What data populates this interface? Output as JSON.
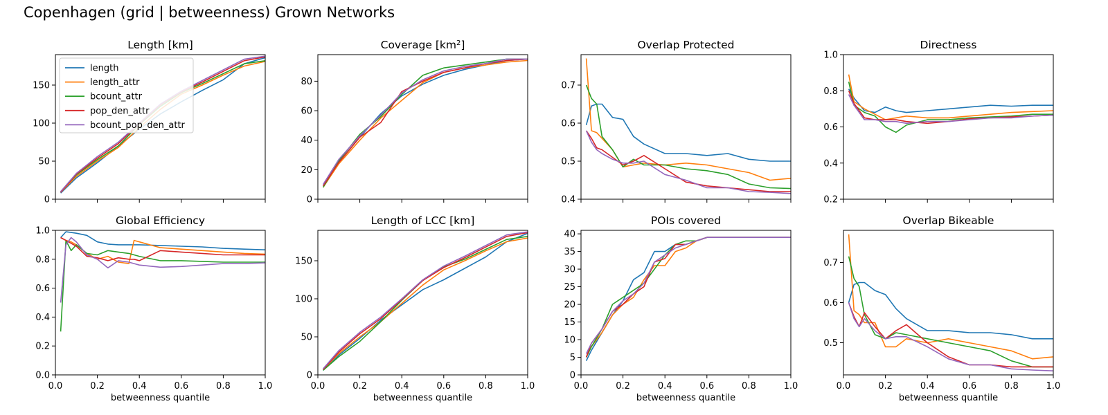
{
  "title": "Copenhagen (grid | betweenness) Grown Networks",
  "colors": {
    "length": "#1f77b4",
    "length_attr": "#ff7f0e",
    "bcount_attr": "#2ca02c",
    "pop_den_attr": "#d62728",
    "bcount_pop_den_attr": "#9467bd"
  },
  "legend": [
    "length",
    "length_attr",
    "bcount_attr",
    "pop_den_attr",
    "bcount_pop_den_attr"
  ],
  "chart_data": [
    {
      "type": "line",
      "title": "Length [km]",
      "xlim": [
        0,
        1
      ],
      "ylim": [
        0,
        190
      ],
      "yticks": [
        0,
        50,
        100,
        150
      ],
      "ytick_labels": [
        "0",
        "50",
        "100",
        "150"
      ],
      "xticks": [],
      "xtick_labels": [],
      "xlabel": "",
      "legend_location": "top-left",
      "x": [
        0.025,
        0.1,
        0.2,
        0.3,
        0.4,
        0.5,
        0.6,
        0.7,
        0.8,
        0.9,
        1.0
      ],
      "series": [
        {
          "name": "length",
          "values": [
            8,
            28,
            48,
            70,
            92,
            112,
            128,
            143,
            157,
            178,
            186
          ]
        },
        {
          "name": "length_attr",
          "values": [
            9,
            30,
            50,
            68,
            94,
            118,
            138,
            150,
            163,
            175,
            181
          ]
        },
        {
          "name": "bcount_attr",
          "values": [
            10,
            32,
            52,
            70,
            98,
            122,
            140,
            152,
            165,
            178,
            182
          ]
        },
        {
          "name": "pop_den_attr",
          "values": [
            9,
            33,
            54,
            73,
            99,
            124,
            141,
            154,
            168,
            182,
            187
          ]
        },
        {
          "name": "bcount_pop_den_attr",
          "values": [
            10,
            34,
            56,
            75,
            100,
            125,
            142,
            156,
            170,
            184,
            188
          ]
        }
      ]
    },
    {
      "type": "line",
      "title": "Coverage [km²]",
      "xlim": [
        0,
        1
      ],
      "ylim": [
        0,
        98
      ],
      "yticks": [
        0,
        20,
        40,
        60,
        80
      ],
      "ytick_labels": [
        "0",
        "20",
        "40",
        "60",
        "80"
      ],
      "xticks": [],
      "xtick_labels": [],
      "xlabel": "",
      "x": [
        0.025,
        0.1,
        0.2,
        0.3,
        0.4,
        0.5,
        0.6,
        0.7,
        0.8,
        0.9,
        1.0
      ],
      "series": [
        {
          "name": "length",
          "values": [
            9,
            25,
            42,
            58,
            70,
            78,
            84,
            88,
            91,
            94,
            95
          ]
        },
        {
          "name": "length_attr",
          "values": [
            8,
            24,
            40,
            55,
            67,
            79,
            86,
            89,
            91,
            93,
            94
          ]
        },
        {
          "name": "bcount_attr",
          "values": [
            8,
            26,
            44,
            56,
            71,
            84,
            89,
            91,
            93,
            95,
            95
          ]
        },
        {
          "name": "pop_den_attr",
          "values": [
            9,
            25,
            42,
            52,
            73,
            80,
            86,
            89,
            92,
            94,
            95
          ]
        },
        {
          "name": "bcount_pop_den_attr",
          "values": [
            10,
            27,
            43,
            57,
            72,
            81,
            87,
            90,
            92,
            95,
            95
          ]
        }
      ]
    },
    {
      "type": "line",
      "title": "Overlap Protected",
      "xlim": [
        0,
        1
      ],
      "ylim": [
        0.4,
        0.78
      ],
      "yticks": [
        0.4,
        0.5,
        0.6,
        0.7
      ],
      "ytick_labels": [
        "0.4",
        "0.5",
        "0.6",
        "0.7"
      ],
      "xticks": [],
      "xtick_labels": [],
      "xlabel": "",
      "x": [
        0.025,
        0.05,
        0.075,
        0.1,
        0.15,
        0.2,
        0.25,
        0.3,
        0.4,
        0.5,
        0.6,
        0.7,
        0.8,
        0.9,
        1.0
      ],
      "series": [
        {
          "name": "length",
          "values": [
            0.595,
            0.645,
            0.65,
            0.65,
            0.615,
            0.61,
            0.565,
            0.545,
            0.52,
            0.52,
            0.515,
            0.52,
            0.505,
            0.5,
            0.5
          ]
        },
        {
          "name": "length_attr",
          "values": [
            0.77,
            0.58,
            0.575,
            0.56,
            0.53,
            0.485,
            0.49,
            0.495,
            0.49,
            0.495,
            0.49,
            0.48,
            0.47,
            0.45,
            0.455
          ]
        },
        {
          "name": "bcount_attr",
          "values": [
            0.7,
            0.665,
            0.65,
            0.565,
            0.53,
            0.485,
            0.505,
            0.49,
            0.49,
            0.48,
            0.475,
            0.465,
            0.44,
            0.43,
            0.428
          ]
        },
        {
          "name": "pop_den_attr",
          "values": [
            0.58,
            0.56,
            0.535,
            0.53,
            0.51,
            0.49,
            0.5,
            0.515,
            0.48,
            0.445,
            0.435,
            0.43,
            0.425,
            0.42,
            0.42
          ]
        },
        {
          "name": "bcount_pop_den_attr",
          "values": [
            0.58,
            0.55,
            0.53,
            0.52,
            0.505,
            0.495,
            0.495,
            0.5,
            0.465,
            0.45,
            0.43,
            0.43,
            0.42,
            0.418,
            0.415
          ]
        }
      ]
    },
    {
      "type": "line",
      "title": "Directness",
      "xlim": [
        0,
        1
      ],
      "ylim": [
        0.2,
        1.0
      ],
      "yticks": [
        0.2,
        0.4,
        0.6,
        0.8,
        1.0
      ],
      "ytick_labels": [
        "0.2",
        "0.4",
        "0.6",
        "0.8",
        "1.0"
      ],
      "xticks": [],
      "xtick_labels": [],
      "xlabel": "",
      "x": [
        0.025,
        0.05,
        0.1,
        0.15,
        0.2,
        0.25,
        0.3,
        0.4,
        0.5,
        0.6,
        0.7,
        0.8,
        0.9,
        1.0
      ],
      "series": [
        {
          "name": "length",
          "values": [
            0.81,
            0.76,
            0.69,
            0.68,
            0.71,
            0.69,
            0.68,
            0.69,
            0.7,
            0.71,
            0.72,
            0.715,
            0.72,
            0.72
          ]
        },
        {
          "name": "length_attr",
          "values": [
            0.89,
            0.74,
            0.7,
            0.67,
            0.64,
            0.65,
            0.66,
            0.65,
            0.65,
            0.66,
            0.67,
            0.68,
            0.685,
            0.69
          ]
        },
        {
          "name": "bcount_attr",
          "values": [
            0.85,
            0.72,
            0.68,
            0.66,
            0.6,
            0.57,
            0.61,
            0.64,
            0.64,
            0.65,
            0.655,
            0.66,
            0.67,
            0.67
          ]
        },
        {
          "name": "pop_den_attr",
          "values": [
            0.8,
            0.73,
            0.65,
            0.64,
            0.64,
            0.64,
            0.63,
            0.62,
            0.63,
            0.645,
            0.65,
            0.655,
            0.66,
            0.665
          ]
        },
        {
          "name": "bcount_pop_den_attr",
          "values": [
            0.78,
            0.72,
            0.64,
            0.64,
            0.63,
            0.63,
            0.62,
            0.63,
            0.63,
            0.64,
            0.65,
            0.65,
            0.66,
            0.665
          ]
        }
      ]
    },
    {
      "type": "line",
      "title": "Global Efficiency",
      "xlim": [
        0,
        1
      ],
      "ylim": [
        0.0,
        1.0
      ],
      "yticks": [
        0.0,
        0.2,
        0.4,
        0.6,
        0.8,
        1.0
      ],
      "ytick_labels": [
        "0.0",
        "0.2",
        "0.4",
        "0.6",
        "0.8",
        "1.0"
      ],
      "xticks": [
        0.0,
        0.2,
        0.4,
        0.6,
        0.8,
        1.0
      ],
      "xtick_labels": [
        "0.0",
        "0.2",
        "0.4",
        "0.6",
        "0.8",
        "1.0"
      ],
      "xlabel": "betweenness quantile",
      "x": [
        0.025,
        0.05,
        0.075,
        0.1,
        0.15,
        0.2,
        0.25,
        0.3,
        0.35,
        0.375,
        0.4,
        0.5,
        0.6,
        0.7,
        0.8,
        0.9,
        1.0
      ],
      "series": [
        {
          "name": "length",
          "values": [
            0.95,
            0.99,
            0.985,
            0.98,
            0.965,
            0.92,
            0.905,
            0.9,
            0.9,
            0.9,
            0.9,
            0.895,
            0.89,
            0.885,
            0.875,
            0.87,
            0.865
          ]
        },
        {
          "name": "length_attr",
          "values": [
            0.95,
            0.93,
            0.92,
            0.9,
            0.84,
            0.8,
            0.82,
            0.78,
            0.77,
            0.93,
            0.92,
            0.88,
            0.87,
            0.86,
            0.85,
            0.84,
            0.835
          ]
        },
        {
          "name": "bcount_attr",
          "values": [
            0.3,
            0.93,
            0.86,
            0.9,
            0.84,
            0.83,
            0.86,
            0.85,
            0.84,
            0.83,
            0.82,
            0.79,
            0.79,
            0.785,
            0.78,
            0.78,
            0.78
          ]
        },
        {
          "name": "pop_den_attr",
          "values": [
            0.95,
            0.93,
            0.91,
            0.89,
            0.82,
            0.81,
            0.79,
            0.81,
            0.8,
            0.8,
            0.79,
            0.86,
            0.85,
            0.84,
            0.83,
            0.83,
            0.83
          ]
        },
        {
          "name": "bcount_pop_den_attr",
          "values": [
            0.5,
            0.9,
            0.95,
            0.92,
            0.83,
            0.8,
            0.74,
            0.79,
            0.78,
            0.77,
            0.76,
            0.745,
            0.75,
            0.76,
            0.77,
            0.77,
            0.775
          ]
        }
      ]
    },
    {
      "type": "line",
      "title": "Length of LCC [km]",
      "xlim": [
        0,
        1
      ],
      "ylim": [
        0,
        190
      ],
      "yticks": [
        0,
        50,
        100,
        150
      ],
      "ytick_labels": [
        "0",
        "50",
        "100",
        "150"
      ],
      "xticks": [
        0.0,
        0.2,
        0.4,
        0.6,
        0.8,
        1.0
      ],
      "xtick_labels": [
        "0.0",
        "0.2",
        "0.4",
        "0.6",
        "0.8",
        "1.0"
      ],
      "xlabel": "betweenness quantile",
      "x": [
        0.025,
        0.1,
        0.2,
        0.3,
        0.4,
        0.5,
        0.6,
        0.7,
        0.8,
        0.9,
        1.0
      ],
      "series": [
        {
          "name": "length",
          "values": [
            6,
            26,
            48,
            72,
            92,
            112,
            125,
            140,
            155,
            175,
            186
          ]
        },
        {
          "name": "length_attr",
          "values": [
            7,
            28,
            50,
            70,
            94,
            118,
            138,
            150,
            163,
            175,
            180
          ]
        },
        {
          "name": "bcount_attr",
          "values": [
            6,
            24,
            44,
            70,
            98,
            124,
            142,
            152,
            165,
            178,
            182
          ]
        },
        {
          "name": "pop_den_attr",
          "values": [
            7,
            30,
            54,
            74,
            99,
            124,
            141,
            154,
            168,
            182,
            187
          ]
        },
        {
          "name": "bcount_pop_den_attr",
          "values": [
            8,
            32,
            56,
            76,
            100,
            125,
            143,
            156,
            170,
            184,
            188
          ]
        }
      ]
    },
    {
      "type": "line",
      "title": "POIs covered",
      "xlim": [
        0,
        1
      ],
      "ylim": [
        0,
        41
      ],
      "yticks": [
        0,
        5,
        10,
        15,
        20,
        25,
        30,
        35,
        40
      ],
      "ytick_labels": [
        "0",
        "5",
        "10",
        "15",
        "20",
        "25",
        "30",
        "35",
        "40"
      ],
      "xticks": [
        0.0,
        0.2,
        0.4,
        0.6,
        0.8,
        1.0
      ],
      "xtick_labels": [
        "0.0",
        "0.2",
        "0.4",
        "0.6",
        "0.8",
        "1.0"
      ],
      "xlabel": "betweenness quantile",
      "x": [
        0.025,
        0.05,
        0.1,
        0.15,
        0.2,
        0.25,
        0.3,
        0.35,
        0.4,
        0.45,
        0.5,
        0.55,
        0.6,
        0.7,
        0.8,
        0.9,
        1.0
      ],
      "series": [
        {
          "name": "length",
          "values": [
            4,
            7,
            12,
            17,
            21,
            27,
            29,
            35,
            35,
            37,
            37,
            38,
            39,
            39,
            39,
            39,
            39
          ]
        },
        {
          "name": "length_attr",
          "values": [
            5,
            8,
            12,
            17,
            20,
            22,
            27,
            31,
            31,
            35,
            36,
            38,
            39,
            39,
            39,
            39,
            39
          ]
        },
        {
          "name": "bcount_attr",
          "values": [
            5,
            8,
            13,
            20,
            22,
            24,
            26,
            30,
            34,
            37,
            38,
            38,
            39,
            39,
            39,
            39,
            39
          ]
        },
        {
          "name": "pop_den_attr",
          "values": [
            5,
            9,
            13,
            18,
            20,
            23,
            25,
            32,
            33,
            37,
            37,
            38,
            39,
            39,
            39,
            39,
            39
          ]
        },
        {
          "name": "bcount_pop_den_attr",
          "values": [
            6,
            9,
            13,
            18,
            21,
            23,
            26,
            32,
            34,
            36,
            37,
            38,
            39,
            39,
            39,
            39,
            39
          ]
        }
      ]
    },
    {
      "type": "line",
      "title": "Overlap Bikeable",
      "xlim": [
        0,
        1
      ],
      "ylim": [
        0.42,
        0.78
      ],
      "yticks": [
        0.5,
        0.6,
        0.7
      ],
      "ytick_labels": [
        "0.5",
        "0.6",
        "0.7"
      ],
      "xticks": [
        0.0,
        0.2,
        0.4,
        0.6,
        0.8,
        1.0
      ],
      "xtick_labels": [
        "0.0",
        "0.2",
        "0.4",
        "0.6",
        "0.8",
        "1.0"
      ],
      "xlabel": "betweenness quantile",
      "x": [
        0.025,
        0.05,
        0.075,
        0.1,
        0.15,
        0.2,
        0.25,
        0.3,
        0.4,
        0.5,
        0.6,
        0.7,
        0.8,
        0.9,
        1.0
      ],
      "series": [
        {
          "name": "length",
          "values": [
            0.6,
            0.645,
            0.65,
            0.65,
            0.63,
            0.62,
            0.585,
            0.56,
            0.53,
            0.53,
            0.525,
            0.525,
            0.52,
            0.51,
            0.51
          ]
        },
        {
          "name": "length_attr",
          "values": [
            0.77,
            0.58,
            0.57,
            0.55,
            0.55,
            0.49,
            0.49,
            0.51,
            0.5,
            0.51,
            0.5,
            0.49,
            0.48,
            0.46,
            0.465
          ]
        },
        {
          "name": "bcount_attr",
          "values": [
            0.715,
            0.66,
            0.64,
            0.57,
            0.52,
            0.51,
            0.525,
            0.52,
            0.51,
            0.5,
            0.49,
            0.48,
            0.455,
            0.44,
            0.44
          ]
        },
        {
          "name": "pop_den_attr",
          "values": [
            0.6,
            0.565,
            0.54,
            0.575,
            0.54,
            0.51,
            0.53,
            0.545,
            0.5,
            0.465,
            0.445,
            0.445,
            0.44,
            0.44,
            0.44
          ]
        },
        {
          "name": "bcount_pop_den_attr",
          "values": [
            0.6,
            0.56,
            0.54,
            0.56,
            0.53,
            0.51,
            0.515,
            0.515,
            0.49,
            0.46,
            0.445,
            0.445,
            0.435,
            0.432,
            0.43
          ]
        }
      ]
    }
  ]
}
